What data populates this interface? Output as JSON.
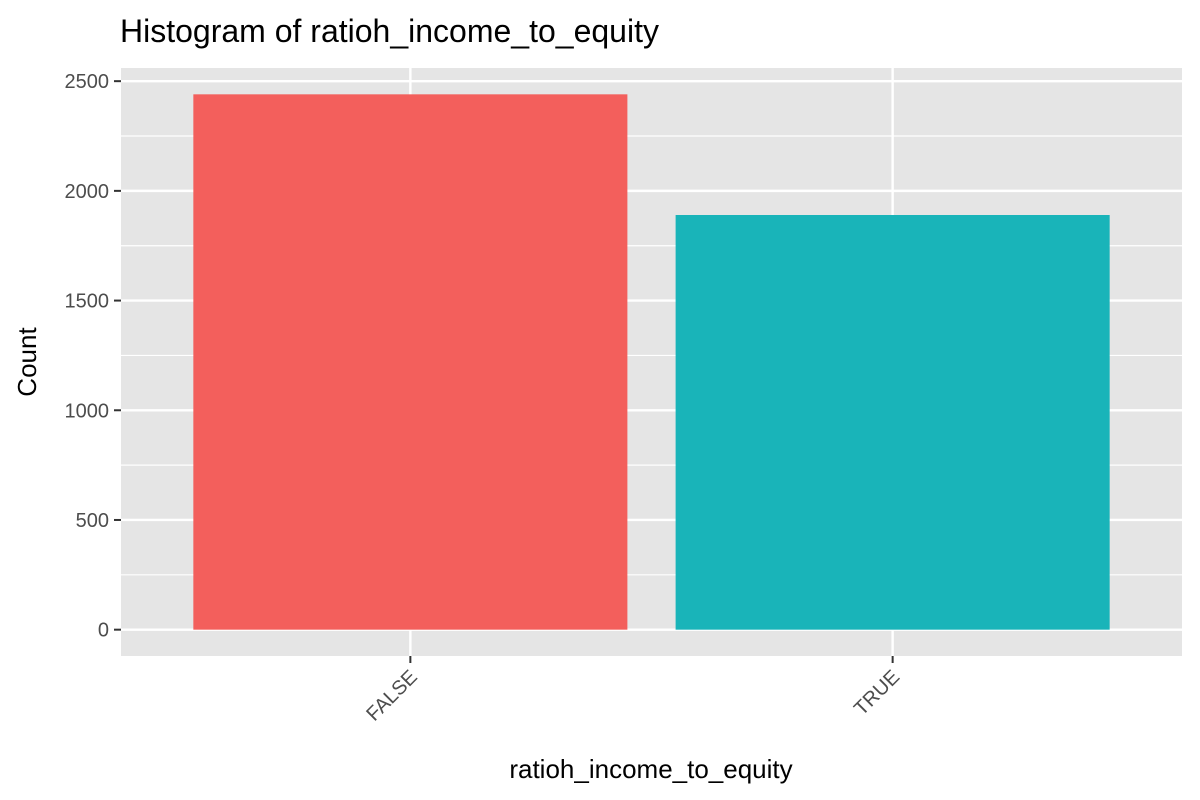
{
  "chart_data": {
    "type": "bar",
    "title": "Histogram of ratioh_income_to_equity",
    "xlabel": "ratioh_income_to_equity",
    "ylabel": "Count",
    "categories": [
      "FALSE",
      "TRUE"
    ],
    "values": [
      2440,
      1890
    ],
    "colors": [
      "#F35F5C",
      "#19B4B9"
    ],
    "ylim": [
      -120,
      2560
    ],
    "yticks": [
      0,
      500,
      1000,
      1500,
      2000,
      2500
    ],
    "ytick_labels": [
      "0",
      "500",
      "1000",
      "1500",
      "2000",
      "2500"
    ],
    "x_tick_rotation": -45,
    "grid": true,
    "panel_background": "#E5E5E5",
    "gridline_color": "#FFFFFF",
    "legend": "none"
  }
}
